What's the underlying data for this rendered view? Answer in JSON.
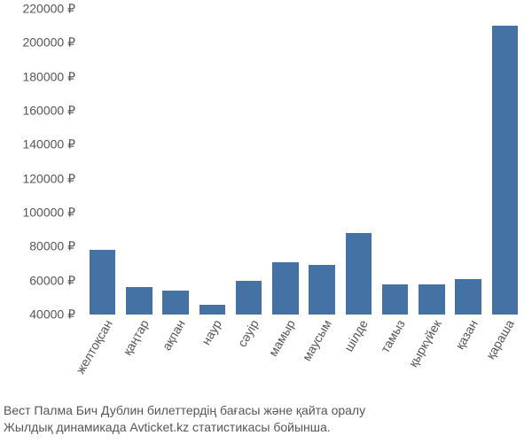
{
  "chart": {
    "type": "bar",
    "categories": [
      "желтоқсан",
      "қаңтар",
      "ақпан",
      "наур",
      "сәуір",
      "мамыр",
      "маусым",
      "шілде",
      "тамыз",
      "қыркүйек",
      "қазан",
      "қараша"
    ],
    "values": [
      78000,
      56000,
      54000,
      46000,
      60000,
      71000,
      69000,
      88000,
      58000,
      58000,
      61000,
      210000
    ],
    "bar_color": "#4472a4",
    "background_color": "#ffffff",
    "ylim": [
      40000,
      220000
    ],
    "ytick_step": 20000,
    "currency_suffix": " ₽",
    "tick_color": "#555555",
    "tick_fontsize": 14,
    "bar_width": 0.72
  },
  "caption": {
    "line1": "Вест Палма Бич Дублин билеттердің бағасы және қайта оралу",
    "line2": "Жылдық динамикада Avticket.kz статистикасы бойынша."
  }
}
